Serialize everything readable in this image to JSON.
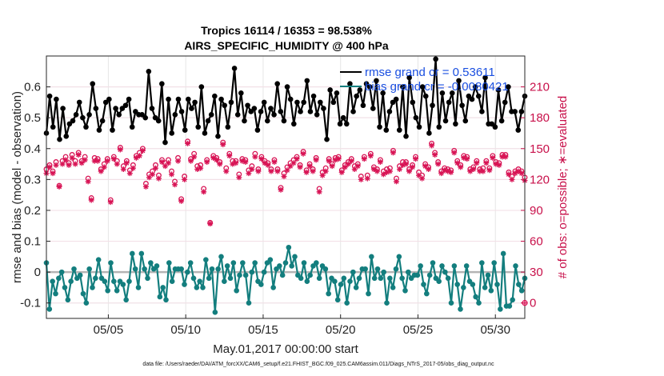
{
  "chart_data": {
    "type": "line",
    "title_line1": "Tropics 16114 / 16353 = 98.538%",
    "title_line2": "AIRS_SPECIFIC_HUMIDITY @ 400 hPa",
    "xlabel": "May.01,2017 00:00:00 start",
    "ylabel_left": "rmse and bias (model - observation)",
    "ylabel_right": "# of obs: o=possible; ∗=evaluated",
    "footer": "data file: /Users/raeder/DAI/ATM_forcXX/CAM6_setup/f.e21.FHIST_BGC.f09_025.CAM6assim.011/Diags_NTrS_2017-05/obs_diag_output.nc",
    "xlim": [
      1,
      31.9
    ],
    "ylim_left": [
      -0.15,
      0.7
    ],
    "ylim_right": [
      -15,
      240
    ],
    "x_ticks": [
      5,
      10,
      15,
      20,
      25,
      30
    ],
    "x_tick_labels": [
      "05/05",
      "05/10",
      "05/15",
      "05/20",
      "05/25",
      "05/30"
    ],
    "y_left_ticks": [
      -0.1,
      0,
      0.1,
      0.2,
      0.3,
      0.4,
      0.5,
      0.6
    ],
    "y_left_tick_labels": [
      "-0.1",
      "0",
      "0.1",
      "0.2",
      "0.3",
      "0.4",
      "0.5",
      "0.6"
    ],
    "y_right_ticks": [
      0,
      30,
      60,
      90,
      120,
      150,
      180,
      210
    ],
    "y_right_tick_labels": [
      "0",
      "30",
      "60",
      "90",
      "120",
      "150",
      "180",
      "210"
    ],
    "colors": {
      "rmse": "#000000",
      "bias": "#137e7e",
      "obs": "#d81455",
      "zero_line": "#b4b4b4",
      "grid": "#e6e6e6",
      "right_axis": "#c8104a"
    },
    "legend": [
      "rmse grand cr = 0.53611",
      "bias grand cr = -0.0080421"
    ],
    "series": [
      {
        "name": "rmse",
        "axis": "left",
        "values": [
          0.45,
          0.57,
          0.47,
          0.56,
          0.43,
          0.53,
          0.44,
          0.48,
          0.49,
          0.51,
          0.55,
          0.5,
          0.47,
          0.51,
          0.61,
          0.53,
          0.46,
          0.49,
          0.55,
          0.56,
          0.46,
          0.53,
          0.51,
          0.53,
          0.54,
          0.56,
          0.47,
          0.52,
          0.51,
          0.51,
          0.5,
          0.65,
          0.53,
          0.5,
          0.49,
          0.61,
          0.42,
          0.56,
          0.45,
          0.51,
          0.56,
          0.52,
          0.46,
          0.56,
          0.53,
          0.55,
          0.47,
          0.6,
          0.45,
          0.49,
          0.51,
          0.57,
          0.44,
          0.56,
          0.54,
          0.47,
          0.55,
          0.66,
          0.51,
          0.58,
          0.49,
          0.54,
          0.52,
          0.53,
          0.46,
          0.52,
          0.55,
          0.49,
          0.53,
          0.51,
          0.61,
          0.52,
          0.49,
          0.6,
          0.56,
          0.48,
          0.55,
          0.52,
          0.55,
          0.62,
          0.52,
          0.57,
          0.51,
          0.55,
          0.53,
          0.43,
          0.59,
          0.55,
          0.58,
          0.48,
          0.5,
          0.48,
          0.61,
          0.52,
          0.57,
          0.59,
          0.54,
          0.61,
          0.6,
          0.53,
          0.62,
          0.47,
          0.58,
          0.46,
          0.52,
          0.55,
          0.56,
          0.46,
          0.6,
          0.44,
          0.63,
          0.55,
          0.5,
          0.47,
          0.6,
          0.57,
          0.45,
          0.54,
          0.69,
          0.47,
          0.58,
          0.49,
          0.55,
          0.58,
          0.48,
          0.62,
          0.54,
          0.49,
          0.57,
          0.56,
          0.6,
          0.57,
          0.52,
          0.63,
          0.48,
          0.48,
          0.47,
          0.59,
          0.49,
          0.55,
          0.6,
          0.52,
          0.52,
          0.46,
          0.52,
          0.57
        ]
      },
      {
        "name": "bias",
        "axis": "left",
        "values": [
          0.03,
          -0.12,
          -0.03,
          -0.07,
          -0.02,
          0.0,
          -0.05,
          -0.09,
          -0.03,
          0.01,
          -0.02,
          -0.01,
          -0.07,
          -0.1,
          0.01,
          -0.05,
          -0.02,
          0.04,
          -0.02,
          -0.03,
          -0.06,
          0.03,
          -0.03,
          -0.06,
          -0.03,
          -0.04,
          -0.09,
          -0.03,
          0.06,
          0.01,
          -0.05,
          0.06,
          0.01,
          -0.02,
          0.03,
          0.01,
          0.02,
          -0.08,
          -0.05,
          -0.09,
          0.03,
          -0.03,
          0.01,
          0.01,
          0.01,
          -0.04,
          0.0,
          0.03,
          -0.02,
          -0.05,
          -0.03,
          -0.05,
          0.04,
          -0.02,
          0.01,
          -0.13,
          0.01,
          0.05,
          -0.03,
          0.02,
          -0.02,
          0.03,
          -0.06,
          -0.01,
          0.03,
          -0.01,
          -0.1,
          0.0,
          0.03,
          -0.03,
          -0.04,
          0.0,
          0.03,
          0.04,
          -0.05,
          0.01,
          0.02,
          -0.01,
          0.03,
          0.08,
          0.02,
          0.05,
          -0.01,
          -0.02,
          0.03,
          -0.03,
          -0.01,
          0.02,
          0.03,
          -0.02,
          0.02,
          0.01,
          -0.07,
          -0.02,
          -0.03,
          -0.09,
          -0.04,
          -0.02,
          -0.1,
          -0.03,
          0.0,
          -0.05,
          -0.02,
          0.01,
          0.01,
          -0.07,
          0.05,
          -0.02,
          0.01,
          -0.02,
          0.0,
          -0.1,
          -0.02,
          -0.05,
          0.01,
          0.05,
          -0.02,
          -0.06,
          0.0,
          -0.02,
          -0.01,
          -0.01,
          0.02,
          -0.04,
          -0.07,
          -0.01,
          0.03,
          -0.02,
          -0.03,
          0.02,
          0.0,
          -0.02,
          -0.1,
          0.02,
          -0.04,
          -0.12,
          -0.05,
          0.02,
          -0.03,
          -0.04,
          -0.08,
          -0.1,
          0.03,
          -0.05,
          -0.01,
          -0.06,
          0.03,
          -0.04,
          -0.12,
          0.06,
          -0.11,
          -0.11,
          -0.09,
          0.02,
          -0.04,
          -0.06,
          -0.02
        ]
      },
      {
        "name": "obs_possible",
        "axis": "right",
        "marker": "o",
        "values": [
          130,
          134,
          128,
          137,
          114,
          138,
          142,
          136,
          144,
          138,
          146,
          138,
          142,
          121,
          102,
          141,
          140,
          130,
          135,
          140,
          100,
          142,
          138,
          151,
          133,
          138,
          129,
          134,
          143,
          146,
          150,
          116,
          125,
          128,
          134,
          124,
          139,
          136,
          139,
          128,
          118,
          141,
          101,
          123,
          157,
          140,
          145,
          133,
          134,
          111,
          139,
          78,
          143,
          141,
          137,
          156,
          131,
          145,
          138,
          138,
          125,
          140,
          139,
          129,
          133,
          145,
          130,
          142,
          138,
          136,
          130,
          139,
          130,
          112,
          126,
          132,
          136,
          139,
          142,
          134,
          147,
          129,
          135,
          130,
          141,
          111,
          127,
          131,
          140,
          135,
          141,
          142,
          129,
          134,
          137,
          140,
          133,
          135,
          123,
          142,
          124,
          145,
          132,
          130,
          139,
          128,
          130,
          131,
          148,
          121,
          133,
          137,
          137,
          130,
          134,
          142,
          127,
          124,
          135,
          132,
          155,
          146,
          137,
          128,
          131,
          130,
          129,
          148,
          138,
          134,
          143,
          142,
          130,
          132,
          138,
          130,
          131,
          138,
          131,
          143,
          137,
          136,
          144,
          144,
          127,
          123,
          128,
          130,
          128,
          122
        ]
      },
      {
        "name": "obs_evaluated",
        "axis": "right",
        "marker": "*",
        "values": [
          126,
          132,
          126,
          134,
          113,
          135,
          139,
          134,
          141,
          135,
          144,
          136,
          139,
          118,
          100,
          138,
          138,
          128,
          132,
          138,
          98,
          140,
          135,
          149,
          130,
          136,
          126,
          131,
          141,
          143,
          148,
          113,
          122,
          125,
          131,
          121,
          137,
          133,
          136,
          125,
          115,
          138,
          99,
          120,
          155,
          138,
          142,
          130,
          131,
          108,
          137,
          77,
          141,
          139,
          135,
          154,
          128,
          143,
          135,
          136,
          122,
          138,
          137,
          126,
          130,
          142,
          128,
          140,
          136,
          134,
          128,
          137,
          128,
          110,
          123,
          129,
          133,
          136,
          140,
          132,
          145,
          127,
          133,
          128,
          139,
          108,
          124,
          128,
          138,
          133,
          139,
          140,
          127,
          132,
          135,
          138,
          130,
          133,
          120,
          140,
          121,
          143,
          130,
          128,
          137,
          125,
          127,
          128,
          146,
          118,
          130,
          134,
          135,
          128,
          132,
          140,
          124,
          121,
          133,
          130,
          153,
          144,
          135,
          126,
          129,
          128,
          127,
          146,
          136,
          132,
          141,
          140,
          128,
          130,
          136,
          128,
          128,
          136,
          129,
          141,
          135,
          134,
          142,
          142,
          125,
          120,
          126,
          128,
          126,
          119
        ]
      }
    ],
    "annotations": [
      {
        "text": "0",
        "axis": "right",
        "value": 0,
        "marker": "o*",
        "color": "#d81455"
      }
    ]
  }
}
